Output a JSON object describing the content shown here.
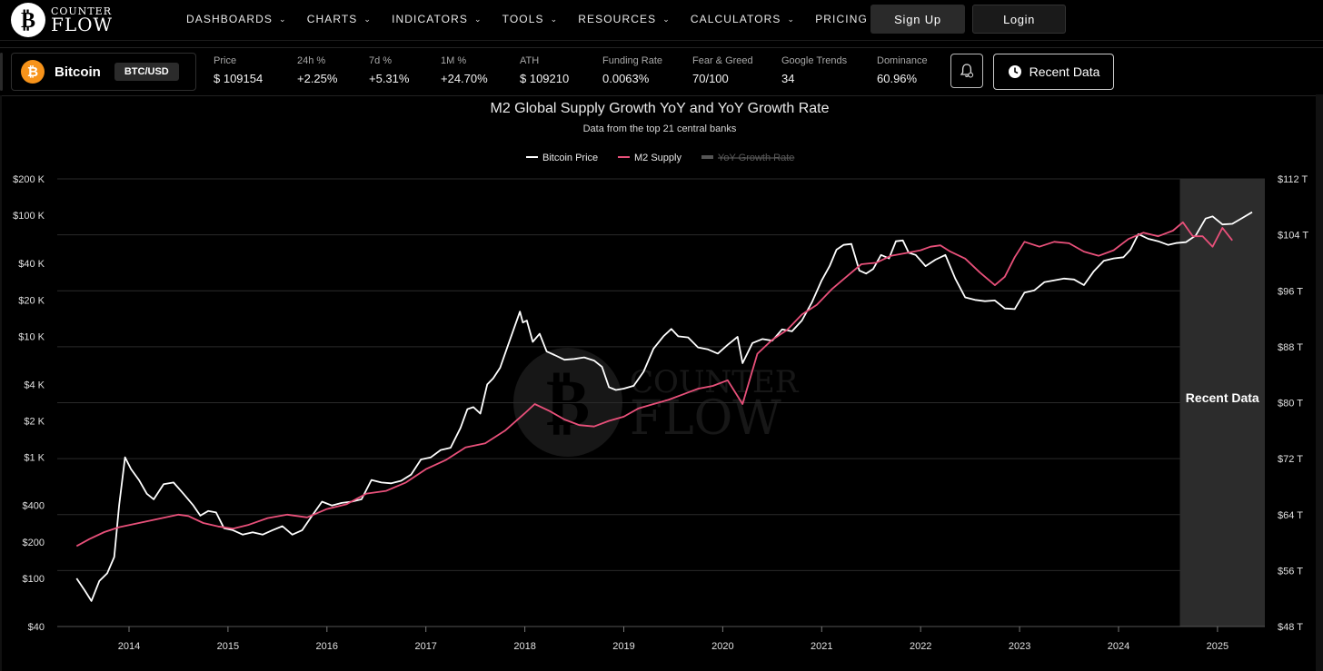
{
  "nav": {
    "logo_line1": "COUNTER",
    "logo_line2": "FLOW",
    "items": [
      "DASHBOARDS",
      "CHARTS",
      "INDICATORS",
      "TOOLS",
      "RESOURCES",
      "CALCULATORS",
      "PRICING"
    ],
    "signup": "Sign Up",
    "login": "Login"
  },
  "ticker": {
    "asset": "Bitcoin",
    "pair": "BTC/USD",
    "stats": [
      {
        "label": "Price",
        "value": "$ 109154"
      },
      {
        "label": "24h %",
        "value": "+2.25%"
      },
      {
        "label": "7d %",
        "value": "+5.31%"
      },
      {
        "label": "1M %",
        "value": "+24.70%"
      },
      {
        "label": "ATH",
        "value": "$ 109210"
      },
      {
        "label": "Funding Rate",
        "value": "0.0063%"
      },
      {
        "label": "Fear & Greed",
        "value": "70/100"
      },
      {
        "label": "Google Trends",
        "value": "34"
      },
      {
        "label": "Dominance",
        "value": "60.96%"
      }
    ],
    "recent_button": "Recent Data"
  },
  "chart_data": {
    "type": "line",
    "title": "M2 Global Supply Growth YoY and YoY Growth Rate",
    "subtitle": "Data from the top 21 central banks",
    "legend": [
      {
        "name": "Bitcoin Price",
        "color": "#ffffff",
        "hidden": false
      },
      {
        "name": "M2 Supply",
        "color": "#e8507a",
        "hidden": false
      },
      {
        "name": "YoY Growth Rate",
        "color": "#555555",
        "hidden": true
      }
    ],
    "x_ticks": [
      "2014",
      "2015",
      "2016",
      "2017",
      "2018",
      "2019",
      "2020",
      "2021",
      "2022",
      "2023",
      "2024",
      "2025"
    ],
    "x_range": [
      2013.5,
      2025.5
    ],
    "y_left": {
      "scale": "log",
      "range": [
        40,
        200000
      ],
      "ticks": [
        {
          "v": 200000,
          "t": "$200 K"
        },
        {
          "v": 100000,
          "t": "$100 K"
        },
        {
          "v": 40000,
          "t": "$40 K"
        },
        {
          "v": 20000,
          "t": "$20 K"
        },
        {
          "v": 10000,
          "t": "$10 K"
        },
        {
          "v": 4000,
          "t": "$4 K"
        },
        {
          "v": 2000,
          "t": "$2 K"
        },
        {
          "v": 1000,
          "t": "$1 K"
        },
        {
          "v": 400,
          "t": "$400"
        },
        {
          "v": 200,
          "t": "$200"
        },
        {
          "v": 100,
          "t": "$100"
        },
        {
          "v": 40,
          "t": "$40"
        }
      ]
    },
    "y_right": {
      "scale": "linear",
      "range": [
        48,
        112
      ],
      "ticks": [
        {
          "v": 112,
          "t": "$112 T"
        },
        {
          "v": 104,
          "t": "$104 T"
        },
        {
          "v": 96,
          "t": "$96 T"
        },
        {
          "v": 88,
          "t": "$88 T"
        },
        {
          "v": 80,
          "t": "$80 T"
        },
        {
          "v": 72,
          "t": "$72 T"
        },
        {
          "v": 64,
          "t": "$64 T"
        },
        {
          "v": 56,
          "t": "$56 T"
        },
        {
          "v": 48,
          "t": "$48 T"
        }
      ]
    },
    "recent_region": {
      "label": "Recent Data",
      "from": 2024.62,
      "to": 2025.5
    },
    "series": [
      {
        "name": "Bitcoin Price",
        "axis": "left",
        "x": [
          2013.47,
          2013.55,
          2013.62,
          2013.7,
          2013.78,
          2013.85,
          2013.9,
          2013.96,
          2014.02,
          2014.1,
          2014.18,
          2014.25,
          2014.35,
          2014.45,
          2014.55,
          2014.65,
          2014.72,
          2014.8,
          2014.88,
          2014.96,
          2015.05,
          2015.15,
          2015.25,
          2015.35,
          2015.45,
          2015.55,
          2015.65,
          2015.75,
          2015.85,
          2015.95,
          2016.05,
          2016.15,
          2016.25,
          2016.35,
          2016.45,
          2016.55,
          2016.65,
          2016.75,
          2016.85,
          2016.95,
          2017.05,
          2017.15,
          2017.25,
          2017.35,
          2017.42,
          2017.48,
          2017.55,
          2017.62,
          2017.68,
          2017.75,
          2017.82,
          2017.88,
          2017.95,
          2017.98,
          2018.02,
          2018.08,
          2018.15,
          2018.22,
          2018.3,
          2018.4,
          2018.5,
          2018.6,
          2018.7,
          2018.78,
          2018.85,
          2018.92,
          2019.0,
          2019.1,
          2019.2,
          2019.3,
          2019.4,
          2019.48,
          2019.55,
          2019.65,
          2019.75,
          2019.85,
          2019.95,
          2020.05,
          2020.15,
          2020.2,
          2020.3,
          2020.4,
          2020.5,
          2020.6,
          2020.7,
          2020.8,
          2020.9,
          2021.0,
          2021.08,
          2021.15,
          2021.22,
          2021.3,
          2021.38,
          2021.45,
          2021.52,
          2021.6,
          2021.68,
          2021.75,
          2021.82,
          2021.88,
          2021.95,
          2022.05,
          2022.15,
          2022.25,
          2022.35,
          2022.45,
          2022.55,
          2022.65,
          2022.75,
          2022.85,
          2022.95,
          2023.05,
          2023.15,
          2023.25,
          2023.35,
          2023.45,
          2023.55,
          2023.65,
          2023.75,
          2023.85,
          2023.95,
          2024.05,
          2024.12,
          2024.2,
          2024.3,
          2024.4,
          2024.5,
          2024.58,
          2024.68,
          2024.78,
          2024.88,
          2024.95,
          2025.05,
          2025.15,
          2025.25,
          2025.35
        ],
        "values": [
          100,
          80,
          65,
          95,
          110,
          150,
          400,
          1000,
          800,
          650,
          500,
          450,
          600,
          620,
          500,
          400,
          330,
          360,
          350,
          260,
          250,
          230,
          240,
          230,
          250,
          270,
          230,
          250,
          330,
          430,
          400,
          420,
          430,
          450,
          650,
          620,
          610,
          640,
          720,
          960,
          1000,
          1150,
          1200,
          1750,
          2500,
          2600,
          2300,
          4000,
          4500,
          5500,
          8000,
          11000,
          16000,
          13000,
          13500,
          9000,
          10500,
          7500,
          7000,
          6400,
          6500,
          6700,
          6300,
          5600,
          3800,
          3600,
          3700,
          3900,
          5100,
          7900,
          10000,
          11500,
          10000,
          9800,
          8100,
          7800,
          7200,
          8500,
          9900,
          6000,
          8800,
          9500,
          9200,
          11400,
          11000,
          13500,
          19000,
          29000,
          38000,
          52000,
          57000,
          58000,
          35000,
          33000,
          36000,
          47000,
          44000,
          61000,
          62000,
          49000,
          47000,
          38000,
          43000,
          47000,
          30000,
          21000,
          20000,
          19500,
          19800,
          17000,
          16800,
          23000,
          24000,
          28000,
          29000,
          30000,
          29500,
          26500,
          34500,
          42000,
          44000,
          45000,
          52000,
          70000,
          64000,
          61000,
          57000,
          59000,
          60000,
          68000,
          94000,
          98000,
          84000,
          85000,
          95000,
          106000
        ]
      },
      {
        "name": "M2 Supply",
        "axis": "right",
        "x": [
          2013.47,
          2013.6,
          2013.75,
          2013.9,
          2014.1,
          2014.3,
          2014.5,
          2014.6,
          2014.75,
          2014.9,
          2015.05,
          2015.2,
          2015.4,
          2015.6,
          2015.8,
          2016.0,
          2016.2,
          2016.4,
          2016.6,
          2016.8,
          2017.0,
          2017.2,
          2017.4,
          2017.6,
          2017.8,
          2018.0,
          2018.1,
          2018.25,
          2018.4,
          2018.55,
          2018.7,
          2018.85,
          2019.0,
          2019.15,
          2019.3,
          2019.45,
          2019.6,
          2019.75,
          2019.9,
          2020.05,
          2020.2,
          2020.35,
          2020.5,
          2020.65,
          2020.8,
          2020.95,
          2021.1,
          2021.25,
          2021.4,
          2021.55,
          2021.7,
          2021.85,
          2022.0,
          2022.1,
          2022.2,
          2022.3,
          2022.45,
          2022.6,
          2022.75,
          2022.85,
          2022.95,
          2023.05,
          2023.2,
          2023.35,
          2023.5,
          2023.65,
          2023.8,
          2023.95,
          2024.1,
          2024.25,
          2024.4,
          2024.55,
          2024.65,
          2024.75,
          2024.85,
          2024.95,
          2025.05,
          2025.15
        ],
        "values": [
          59.5,
          60.5,
          61.5,
          62.2,
          62.8,
          63.4,
          64.0,
          63.8,
          62.8,
          62.3,
          62.0,
          62.5,
          63.5,
          64.0,
          63.6,
          64.8,
          65.5,
          67.0,
          67.4,
          68.6,
          70.5,
          71.8,
          73.6,
          74.2,
          76.0,
          78.5,
          79.8,
          78.8,
          77.6,
          76.8,
          76.6,
          77.4,
          78.0,
          79.2,
          79.8,
          80.4,
          81.2,
          82.0,
          82.4,
          83.2,
          79.8,
          87.0,
          89.0,
          90.4,
          92.6,
          94.0,
          96.2,
          98.0,
          99.8,
          100.0,
          101.0,
          101.4,
          101.8,
          102.3,
          102.5,
          101.6,
          100.6,
          98.6,
          96.8,
          98.0,
          100.8,
          103.0,
          102.3,
          103.0,
          102.8,
          101.6,
          101.0,
          101.8,
          103.4,
          104.3,
          103.8,
          104.6,
          105.8,
          103.8,
          103.8,
          102.3,
          105.0,
          103.2
        ]
      }
    ]
  }
}
